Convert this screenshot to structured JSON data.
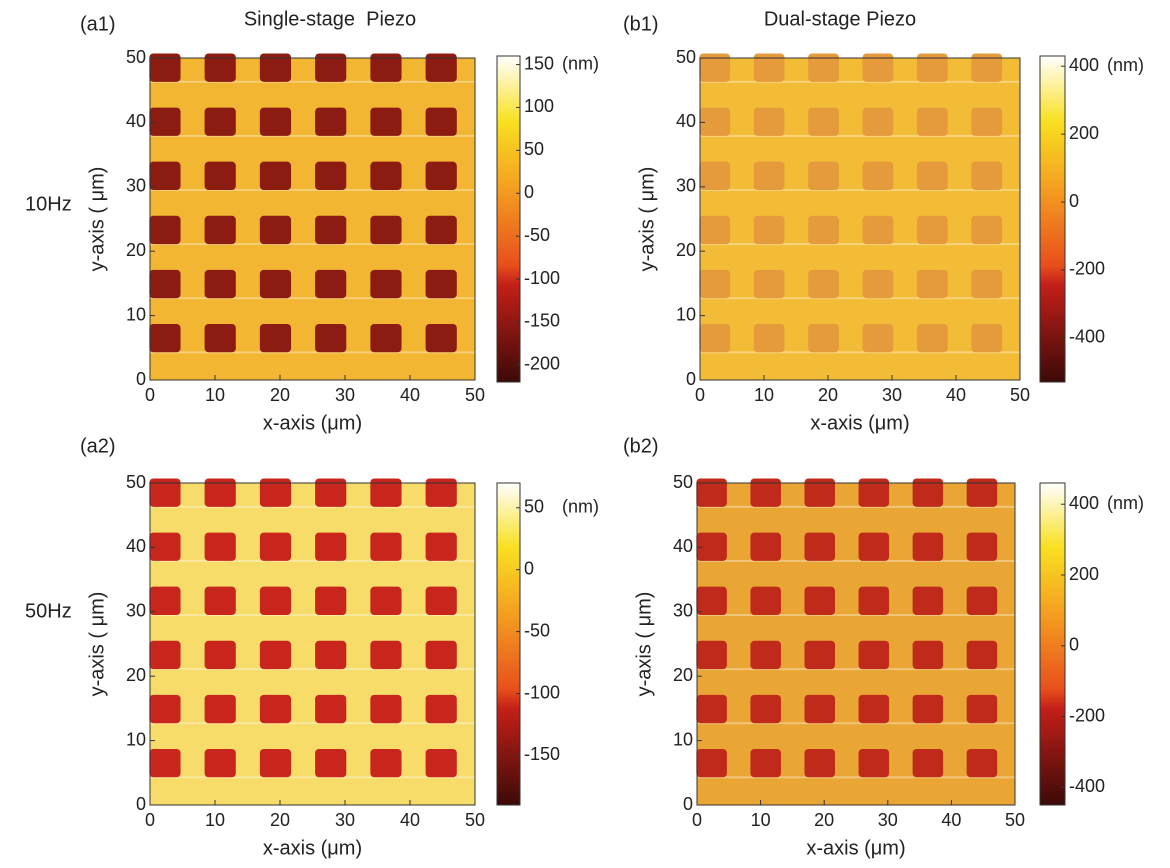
{
  "chart_data": [
    {
      "type": "heatmap",
      "panel_label": "(a1)",
      "title": "Single-stage  Piezo",
      "row_label": "10Hz",
      "xlabel": "x-axis (μm)",
      "ylabel": "y-axis ( μm)",
      "xlim": [
        0,
        50
      ],
      "xticks": [
        0,
        10,
        20,
        30,
        40,
        50
      ],
      "ylim": [
        0,
        50
      ],
      "yticks": [
        0,
        10,
        20,
        30,
        40,
        50
      ],
      "background_color": "#f2b632",
      "feature_color": "#8c1c12",
      "colorbar": {
        "unit": "(nm)",
        "clim": [
          -220,
          160
        ],
        "ticks": [
          150,
          100,
          50,
          0,
          -50,
          -100,
          -150,
          -200
        ]
      }
    },
    {
      "type": "heatmap",
      "panel_label": "(b1)",
      "title": "Dual-stage Piezo",
      "xlabel": "x-axis (μm)",
      "ylabel": "y-axis ( μm)",
      "xlim": [
        0,
        50
      ],
      "xticks": [
        0,
        10,
        20,
        30,
        40,
        50
      ],
      "ylim": [
        0,
        50
      ],
      "yticks": [
        0,
        10,
        20,
        30,
        40,
        50
      ],
      "background_color": "#f3bc36",
      "feature_color": "#e59a3c",
      "colorbar": {
        "unit": "(nm)",
        "clim": [
          -530,
          430
        ],
        "ticks": [
          400,
          200,
          0,
          -200,
          -400
        ]
      }
    },
    {
      "type": "heatmap",
      "panel_label": "(a2)",
      "row_label": "50Hz",
      "xlabel": "x-axis (μm)",
      "ylabel": "y-axis ( μm)",
      "xlim": [
        0,
        50
      ],
      "xticks": [
        0,
        10,
        20,
        30,
        40,
        50
      ],
      "ylim": [
        0,
        50
      ],
      "yticks": [
        0,
        10,
        20,
        30,
        40,
        50
      ],
      "background_color": "#f7dc6a",
      "feature_color": "#c8261c",
      "colorbar": {
        "unit": "(nm)",
        "clim": [
          -190,
          70
        ],
        "ticks": [
          50,
          0,
          -50,
          -100,
          -150
        ]
      }
    },
    {
      "type": "heatmap",
      "panel_label": "(b2)",
      "xlabel": "x-axis (μm)",
      "ylabel": "y-axis ( μm)",
      "xlim": [
        0,
        50
      ],
      "xticks": [
        0,
        10,
        20,
        30,
        40,
        50
      ],
      "ylim": [
        0,
        50
      ],
      "yticks": [
        0,
        10,
        20,
        30,
        40,
        50
      ],
      "background_color": "#e9a634",
      "feature_color": "#bf2a1a",
      "colorbar": {
        "unit": "(nm)",
        "clim": [
          -450,
          460
        ],
        "ticks": [
          400,
          200,
          0,
          -200,
          -400
        ]
      }
    }
  ]
}
